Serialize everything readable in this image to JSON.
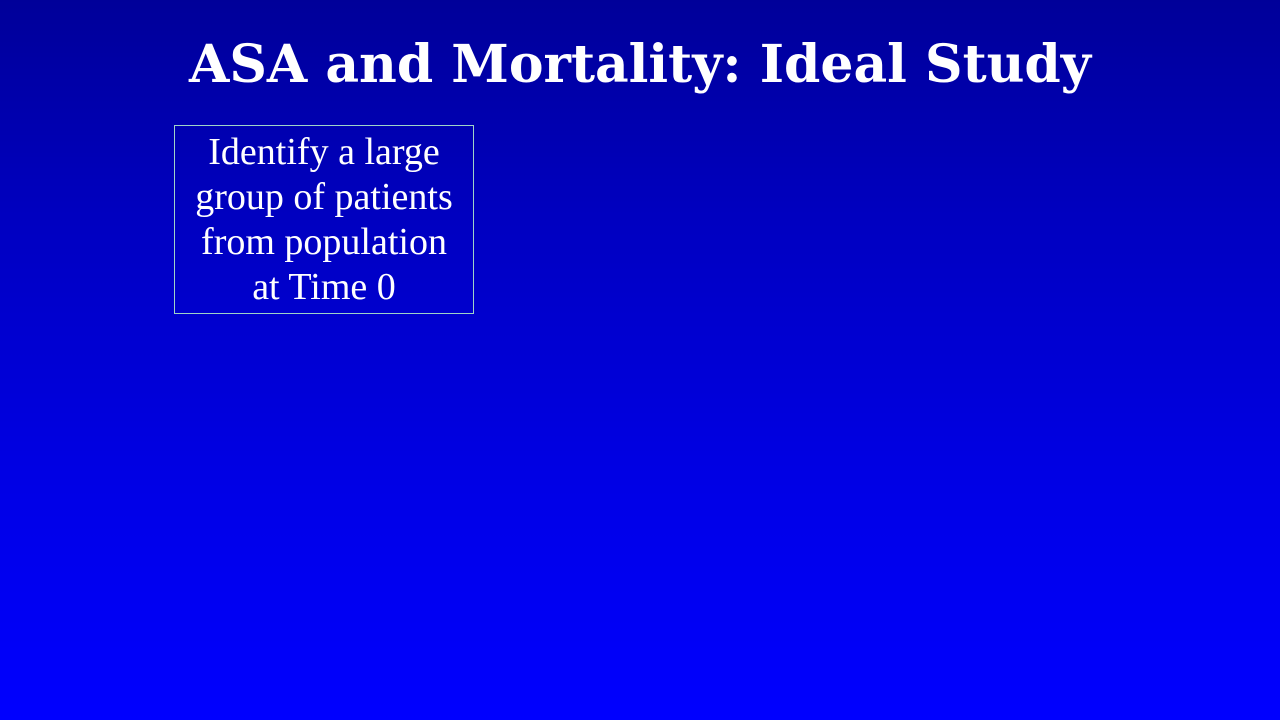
{
  "slide": {
    "title": "ASA and Mortality: Ideal Study",
    "steps": [
      {
        "text": "Identify a large\ngroup of patients\nfrom population\nat Time 0"
      }
    ]
  },
  "colors": {
    "background_top": "#000099",
    "background_bottom": "#0000ff",
    "text": "#ffffff",
    "box_border": "#9fd3c7"
  }
}
